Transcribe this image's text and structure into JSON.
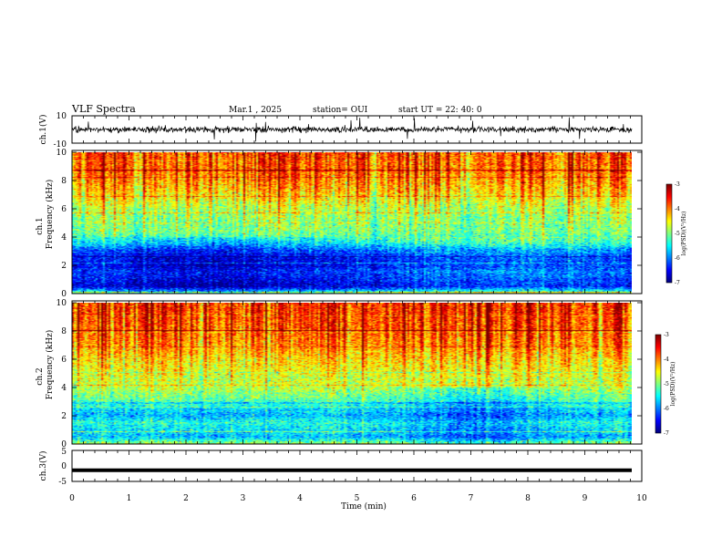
{
  "header": {
    "title": "VLF Spectra",
    "date": "Mar.1 , 2025",
    "station": "station= OUI",
    "start": "start UT = 22: 40: 0"
  },
  "chart_data": [
    {
      "type": "line",
      "panel": "ch1-waveform",
      "ylabel": "ch.1(V)",
      "ylim": [
        -10,
        10
      ],
      "yticks": [
        "10",
        "-10"
      ],
      "xlim": [
        0,
        10
      ],
      "note_values": "continuous noisy waveform around 0 V with occasional spikes"
    },
    {
      "type": "heatmap",
      "panel": "ch1-spectrogram",
      "ylabel_line1": "ch.1",
      "ylabel_line2": "Frequency (kHz)",
      "ylim": [
        0,
        10
      ],
      "yticks": [
        "0",
        "2",
        "4",
        "6",
        "8",
        "10"
      ],
      "xlim": [
        0,
        10
      ],
      "colorbar": {
        "min": -7,
        "max": -3,
        "ticks": [
          "-3",
          "-4",
          "-5",
          "-6",
          "-7"
        ],
        "label": "log(PSD)(V²/Hz)"
      },
      "frequency_profile_kHz": [
        0,
        0.5,
        1,
        1.5,
        2,
        2.5,
        3,
        3.5,
        4,
        4.5,
        5,
        6,
        7,
        8,
        9,
        10
      ],
      "log_psd_profile": [
        -5.2,
        -6.6,
        -6.4,
        -6.2,
        -6.5,
        -6.4,
        -6.2,
        -5.6,
        -5.2,
        -5.0,
        -5.0,
        -4.8,
        -4.4,
        -4.1,
        -3.9,
        -3.8
      ]
    },
    {
      "type": "heatmap",
      "panel": "ch2-spectrogram",
      "ylabel_line1": "ch.2",
      "ylabel_line2": "Frequency (kHz)",
      "ylim": [
        0,
        10
      ],
      "yticks": [
        "0",
        "2",
        "4",
        "6",
        "8",
        "10"
      ],
      "xlim": [
        0,
        10
      ],
      "colorbar": {
        "min": -7,
        "max": -3,
        "ticks": [
          "-3",
          "-4",
          "-5",
          "-6",
          "-7"
        ],
        "label": "log(PSD)(V²/Hz)"
      },
      "frequency_profile_kHz": [
        0,
        0.5,
        1,
        1.5,
        2,
        2.5,
        3,
        3.5,
        4,
        4.5,
        5,
        6,
        7,
        8,
        9,
        10
      ],
      "log_psd_profile": [
        -4.8,
        -5.8,
        -5.6,
        -5.4,
        -5.8,
        -5.6,
        -5.2,
        -5.0,
        -4.8,
        -4.7,
        -4.6,
        -4.4,
        -4.1,
        -3.9,
        -3.8,
        -3.7
      ]
    },
    {
      "type": "line",
      "panel": "ch3-waveform",
      "ylabel": "ch.3(V)",
      "ylim": [
        -5,
        5
      ],
      "yticks": [
        "5",
        "0",
        "-5"
      ],
      "xlim": [
        0,
        10
      ],
      "values": [
        -1.4,
        -1.4
      ]
    }
  ],
  "xaxis": {
    "label": "Time (min)",
    "ticks": [
      "0",
      "1",
      "2",
      "3",
      "4",
      "5",
      "6",
      "7",
      "8",
      "9",
      "10"
    ]
  }
}
